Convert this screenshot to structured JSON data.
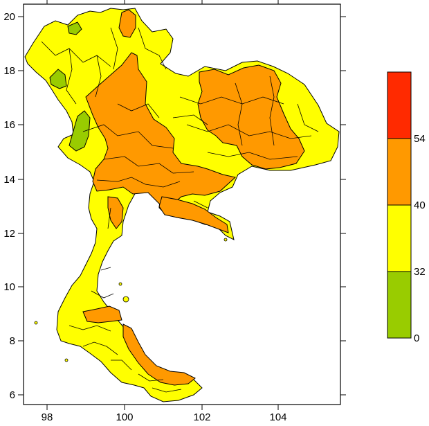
{
  "map": {
    "x_ticks": [
      "98",
      "100",
      "102",
      "104"
    ],
    "y_ticks": [
      "20",
      "18",
      "16",
      "14",
      "12",
      "10",
      "8",
      "6"
    ]
  },
  "legend": {
    "bands": [
      {
        "from": "54",
        "color": "#ff2a00"
      },
      {
        "from": "40",
        "color": "#ff9900"
      },
      {
        "from": "32",
        "color": "#ffff00"
      },
      {
        "from": "0",
        "color": "#99cc00"
      }
    ],
    "labels": [
      "54",
      "40",
      "32",
      "0"
    ]
  },
  "colors": {
    "green": "#99cc00",
    "yellow": "#ffff00",
    "orange": "#ff9900",
    "red": "#ff2a00"
  }
}
